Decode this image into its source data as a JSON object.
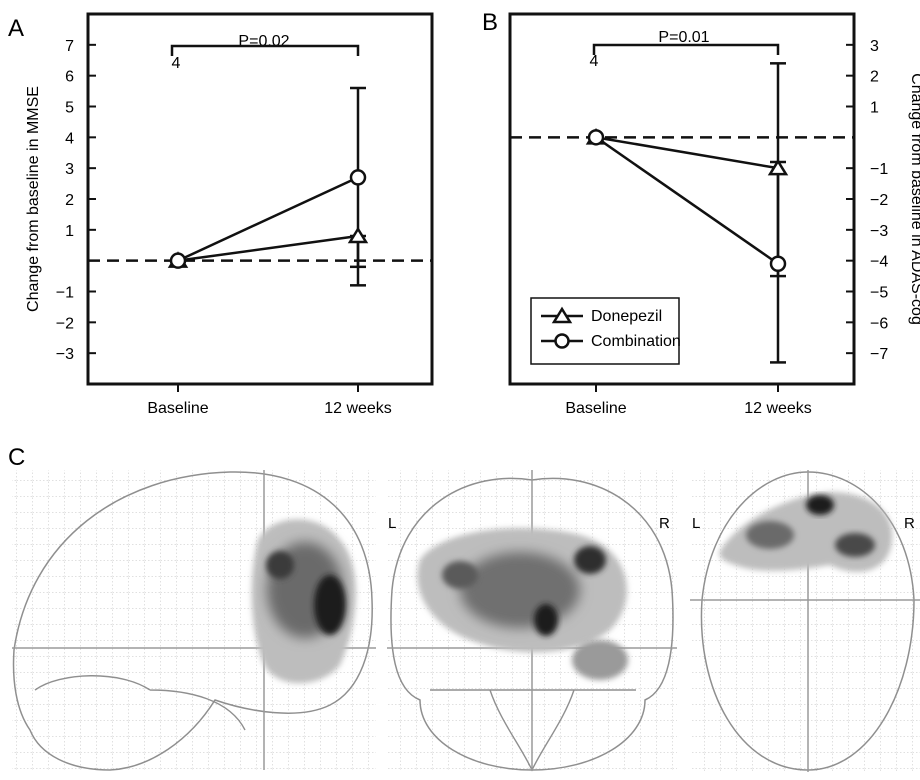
{
  "panels": {
    "a": "A",
    "b": "B",
    "c": "C"
  },
  "chart_data": [
    {
      "type": "line",
      "panel": "A",
      "ylabel": "Change from baseline in MMSE",
      "categories": [
        "Baseline",
        "12 weeks"
      ],
      "ylim": [
        -4,
        8
      ],
      "yticks": [
        -3,
        -2,
        -1,
        1,
        2,
        3,
        4,
        5,
        6,
        7
      ],
      "reference_line": 0,
      "series": [
        {
          "name": "Donepezil",
          "marker": "triangle",
          "values": [
            0,
            0.8
          ],
          "error_12w": [
            -0.8,
            0.8
          ]
        },
        {
          "name": "Combination",
          "marker": "circle",
          "values": [
            0,
            2.7
          ],
          "error_12w": [
            -0.2,
            5.6
          ]
        }
      ],
      "significance": {
        "label": "P=0.02",
        "n": "4"
      },
      "grid": false
    },
    {
      "type": "line",
      "panel": "B",
      "ylabel": "Change from baseline in ADAS-cog",
      "ylabel_position": "right",
      "categories": [
        "Baseline",
        "12 weeks"
      ],
      "ylim": [
        -8,
        4
      ],
      "yticks": [
        3,
        2,
        1,
        -1,
        -2,
        -3,
        -4,
        -5,
        -6,
        -7
      ],
      "reference_line": 0,
      "series": [
        {
          "name": "Donepezil",
          "marker": "triangle",
          "values": [
            0,
            -1.0
          ],
          "error_12w": [
            -4.5,
            2.4
          ]
        },
        {
          "name": "Combination",
          "marker": "circle",
          "values": [
            0,
            -4.1
          ],
          "error_12w": [
            -7.3,
            -0.8
          ]
        }
      ],
      "significance": {
        "label": "P=0.01",
        "n": "4"
      },
      "legend": {
        "position": "bottom-left",
        "entries": [
          "Donepezil",
          "Combination"
        ]
      },
      "grid": false
    }
  ],
  "brain_views": [
    {
      "name": "sagittal",
      "left_label": "",
      "right_label": ""
    },
    {
      "name": "coronal",
      "left_label": "L",
      "right_label": "R"
    },
    {
      "name": "axial",
      "left_label": "L",
      "right_label": "R"
    }
  ],
  "colors": {
    "ink": "#111111",
    "outline": "#9a9a9a",
    "grid": "#c8c8c8",
    "blob_dark": "#1a1a1a",
    "blob_light": "#bdbdbd"
  }
}
